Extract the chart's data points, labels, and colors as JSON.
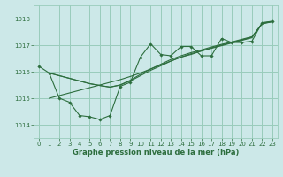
{
  "background_color": "#cce8e8",
  "grid_color": "#99ccbb",
  "line_color": "#2d6e3e",
  "xlabel": "Graphe pression niveau de la mer (hPa)",
  "ylim": [
    1013.5,
    1018.5
  ],
  "xlim": [
    -0.5,
    23.5
  ],
  "yticks": [
    1014,
    1015,
    1016,
    1017,
    1018
  ],
  "xticks": [
    0,
    1,
    2,
    3,
    4,
    5,
    6,
    7,
    8,
    9,
    10,
    11,
    12,
    13,
    14,
    15,
    16,
    17,
    18,
    19,
    20,
    21,
    22,
    23
  ],
  "series1_x": [
    0,
    1,
    2,
    3,
    4,
    5,
    6,
    7,
    8,
    9,
    10,
    11,
    12,
    13,
    14,
    15,
    16,
    17,
    18,
    19,
    20,
    21,
    22,
    23
  ],
  "series1_y": [
    1016.2,
    1015.95,
    1015.0,
    1014.85,
    1014.35,
    1014.3,
    1014.2,
    1014.35,
    1015.45,
    1015.6,
    1016.55,
    1017.05,
    1016.65,
    1016.6,
    1016.95,
    1016.95,
    1016.6,
    1016.6,
    1017.25,
    1017.1,
    1017.1,
    1017.15,
    1017.85,
    1017.9
  ],
  "series2_x": [
    1,
    2,
    3,
    4,
    5,
    6,
    7,
    8,
    9,
    10,
    11,
    12,
    13,
    14,
    15,
    16,
    17,
    18,
    19,
    20,
    21,
    22,
    23
  ],
  "series2_y": [
    1015.0,
    1015.1,
    1015.2,
    1015.3,
    1015.4,
    1015.5,
    1015.6,
    1015.7,
    1015.82,
    1015.95,
    1016.1,
    1016.25,
    1016.4,
    1016.55,
    1016.65,
    1016.78,
    1016.88,
    1016.98,
    1017.08,
    1017.18,
    1017.28,
    1017.82,
    1017.88
  ],
  "series3_x": [
    1,
    2,
    3,
    4,
    5,
    6,
    7,
    8,
    9,
    10,
    11,
    12,
    13,
    14,
    15,
    16,
    17,
    18,
    19,
    20,
    21,
    22,
    23
  ],
  "series3_y": [
    1015.95,
    1015.85,
    1015.75,
    1015.65,
    1015.55,
    1015.48,
    1015.42,
    1015.5,
    1015.65,
    1015.85,
    1016.05,
    1016.22,
    1016.4,
    1016.55,
    1016.68,
    1016.78,
    1016.9,
    1017.0,
    1017.1,
    1017.2,
    1017.3,
    1017.8,
    1017.88
  ],
  "series4_x": [
    1,
    2,
    3,
    4,
    5,
    6,
    7,
    8,
    9,
    10,
    11,
    12,
    13,
    14,
    15,
    16,
    17,
    18,
    19,
    20,
    21,
    22,
    23
  ],
  "series4_y": [
    1015.95,
    1015.85,
    1015.75,
    1015.65,
    1015.55,
    1015.48,
    1015.42,
    1015.5,
    1015.68,
    1015.9,
    1016.1,
    1016.28,
    1016.46,
    1016.6,
    1016.72,
    1016.82,
    1016.93,
    1017.03,
    1017.12,
    1017.22,
    1017.32,
    1017.82,
    1017.9
  ]
}
